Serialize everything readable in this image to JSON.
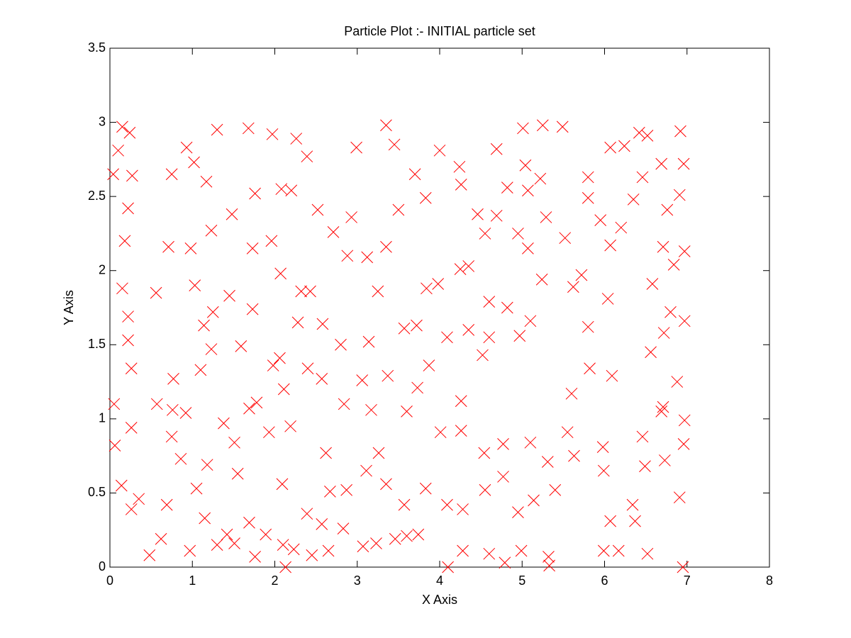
{
  "chart_data": {
    "type": "scatter",
    "title": "Particle Plot :- INITIAL particle set",
    "x_label": "X Axis",
    "y_label": "Y Axis",
    "color": "#ff0000",
    "marker": "x",
    "grid": false,
    "xlim": [
      0,
      8
    ],
    "xticks": [
      0,
      1,
      2,
      3,
      4,
      5,
      6,
      7,
      8
    ],
    "ylim": [
      0,
      3.5
    ],
    "yticks": [
      0,
      0.5,
      1,
      1.5,
      2,
      2.5,
      3,
      3.5
    ],
    "x": [
      0.04,
      0.1,
      0.15,
      0.24,
      0.27,
      0.22,
      0.18,
      0.15,
      0.22,
      0.26,
      0.22,
      0.26,
      0.05,
      0.06,
      0.14,
      0.26,
      0.35,
      0.48,
      0.62,
      0.97,
      1.05,
      1.15,
      1.3,
      1.51,
      1.76,
      1.69,
      1.55,
      2.1,
      2.13,
      2.23,
      2.39,
      2.45,
      2.65,
      2.83,
      3.07,
      3.23,
      3.46,
      3.6,
      3.74,
      4.1,
      4.28,
      4.6,
      4.79,
      4.99,
      5.32,
      5.33,
      5.99,
      6.17,
      6.52,
      6.95,
      6.91,
      6.96,
      6.97,
      6.88,
      6.97,
      6.97,
      6.96,
      6.92,
      6.91,
      6.46,
      6.35,
      6.24,
      6.07,
      6.04,
      6.09,
      5.98,
      5.99,
      6.07,
      5.55,
      5.6,
      5.82,
      5.8,
      5.62,
      5.72,
      5.52,
      5.29,
      5.22,
      5.25,
      5.49,
      5.01,
      5.04,
      4.69,
      4.55,
      4.46,
      4.25,
      4.35,
      3.98,
      3.84,
      3.57,
      3.37,
      3.25,
      2.93,
      2.99,
      3.35,
      3.45,
      3.7,
      4.0,
      4.24,
      4.69,
      2.39,
      2.26,
      1.97,
      1.68,
      1.3,
      0.93,
      0.75,
      1.02,
      1.17,
      1.23,
      0.71,
      0.98,
      0.56,
      1.14,
      1.23,
      1.1,
      0.77,
      0.57,
      0.76,
      0.92,
      0.75,
      0.86,
      1.18,
      1.38,
      1.69,
      1.93,
      2.11,
      2.19,
      2.4,
      2.28,
      2.43,
      2.58,
      2.57,
      2.62,
      2.84,
      3.06,
      3.17,
      3.26,
      3.35,
      3.6,
      3.73,
      3.87,
      4.01,
      4.26,
      4.26,
      4.54,
      4.77,
      5.1,
      5.31,
      5.63,
      5.4,
      5.14,
      4.95,
      4.77,
      4.55,
      4.28,
      4.09,
      3.83,
      3.57,
      3.11,
      2.87,
      2.67,
      2.57,
      2.09,
      1.89,
      1.42,
      0.69,
      6.37,
      6.34,
      6.46,
      6.69,
      6.56,
      6.72,
      6.58,
      6.71,
      6.07,
      5.95,
      6.2,
      5.8,
      5.8,
      6.42,
      6.52,
      6.69,
      6.76,
      6.84,
      6.8,
      6.71,
      6.73,
      6.49,
      4.82,
      4.6,
      4.97,
      5.1,
      5.24,
      5.07,
      4.95,
      5.07,
      4.82,
      4.26,
      3.83,
      3.5,
      3.35,
      3.12,
      2.88,
      2.71,
      2.52,
      2.2,
      2.08,
      1.76,
      1.48,
      1.73,
      1.96,
      2.07,
      2.32,
      1.73,
      1.45,
      1.03,
      1.25,
      1.59,
      1.98,
      1.78,
      1.51,
      2.06,
      2.8,
      3.14,
      3.72,
      4.09,
      4.52,
      4.6,
      4.35
    ],
    "values": [
      2.65,
      2.81,
      2.97,
      2.93,
      2.64,
      2.42,
      2.2,
      1.88,
      1.69,
      1.34,
      1.53,
      0.94,
      1.1,
      0.82,
      0.55,
      0.39,
      0.46,
      0.08,
      0.19,
      0.11,
      0.53,
      0.33,
      0.15,
      0.16,
      0.07,
      0.3,
      0.63,
      0.15,
      0.0,
      0.12,
      0.36,
      0.08,
      0.11,
      0.26,
      0.14,
      0.16,
      0.19,
      0.21,
      0.22,
      0.0,
      0.11,
      0.09,
      0.03,
      0.11,
      0.07,
      0.01,
      0.11,
      0.11,
      0.09,
      0.0,
      0.47,
      0.83,
      0.99,
      1.25,
      1.66,
      2.13,
      2.72,
      2.94,
      2.51,
      2.63,
      2.48,
      2.84,
      2.83,
      1.81,
      1.29,
      0.81,
      0.65,
      0.31,
      0.91,
      1.17,
      1.34,
      1.62,
      1.89,
      1.97,
      2.22,
      2.36,
      2.62,
      2.98,
      2.97,
      2.96,
      2.71,
      2.37,
      2.25,
      2.38,
      2.01,
      2.03,
      1.91,
      1.88,
      1.61,
      1.29,
      1.86,
      2.36,
      2.83,
      2.98,
      2.85,
      2.65,
      2.81,
      2.7,
      2.82,
      2.77,
      2.89,
      2.92,
      2.96,
      2.95,
      2.83,
      2.65,
      2.73,
      2.6,
      2.27,
      2.16,
      2.15,
      1.85,
      1.63,
      1.47,
      1.33,
      1.27,
      1.1,
      1.06,
      1.04,
      0.88,
      0.73,
      0.69,
      0.97,
      1.07,
      0.91,
      1.2,
      0.95,
      1.34,
      1.65,
      1.86,
      1.64,
      1.27,
      0.77,
      1.1,
      1.26,
      1.06,
      0.77,
      0.56,
      1.05,
      1.21,
      1.36,
      0.91,
      1.12,
      0.92,
      0.77,
      0.83,
      0.84,
      0.71,
      0.75,
      0.52,
      0.45,
      0.37,
      0.61,
      0.52,
      0.39,
      0.42,
      0.53,
      0.42,
      0.65,
      0.52,
      0.51,
      0.29,
      0.56,
      0.22,
      0.22,
      0.42,
      0.31,
      0.42,
      0.88,
      1.05,
      1.45,
      1.58,
      1.91,
      2.16,
      2.17,
      2.34,
      2.29,
      2.49,
      2.63,
      2.93,
      2.91,
      2.72,
      2.41,
      2.04,
      1.72,
      1.08,
      0.72,
      0.68,
      1.75,
      1.55,
      1.56,
      1.66,
      1.94,
      2.15,
      2.25,
      2.54,
      2.56,
      2.58,
      2.49,
      2.41,
      2.16,
      2.09,
      2.1,
      2.26,
      2.41,
      2.54,
      2.55,
      2.52,
      2.38,
      2.15,
      2.2,
      1.98,
      1.86,
      1.74,
      1.83,
      1.9,
      1.72,
      1.49,
      1.36,
      1.11,
      0.84,
      1.41,
      1.5,
      1.52,
      1.63,
      1.55,
      1.43,
      1.79,
      1.6
    ]
  }
}
